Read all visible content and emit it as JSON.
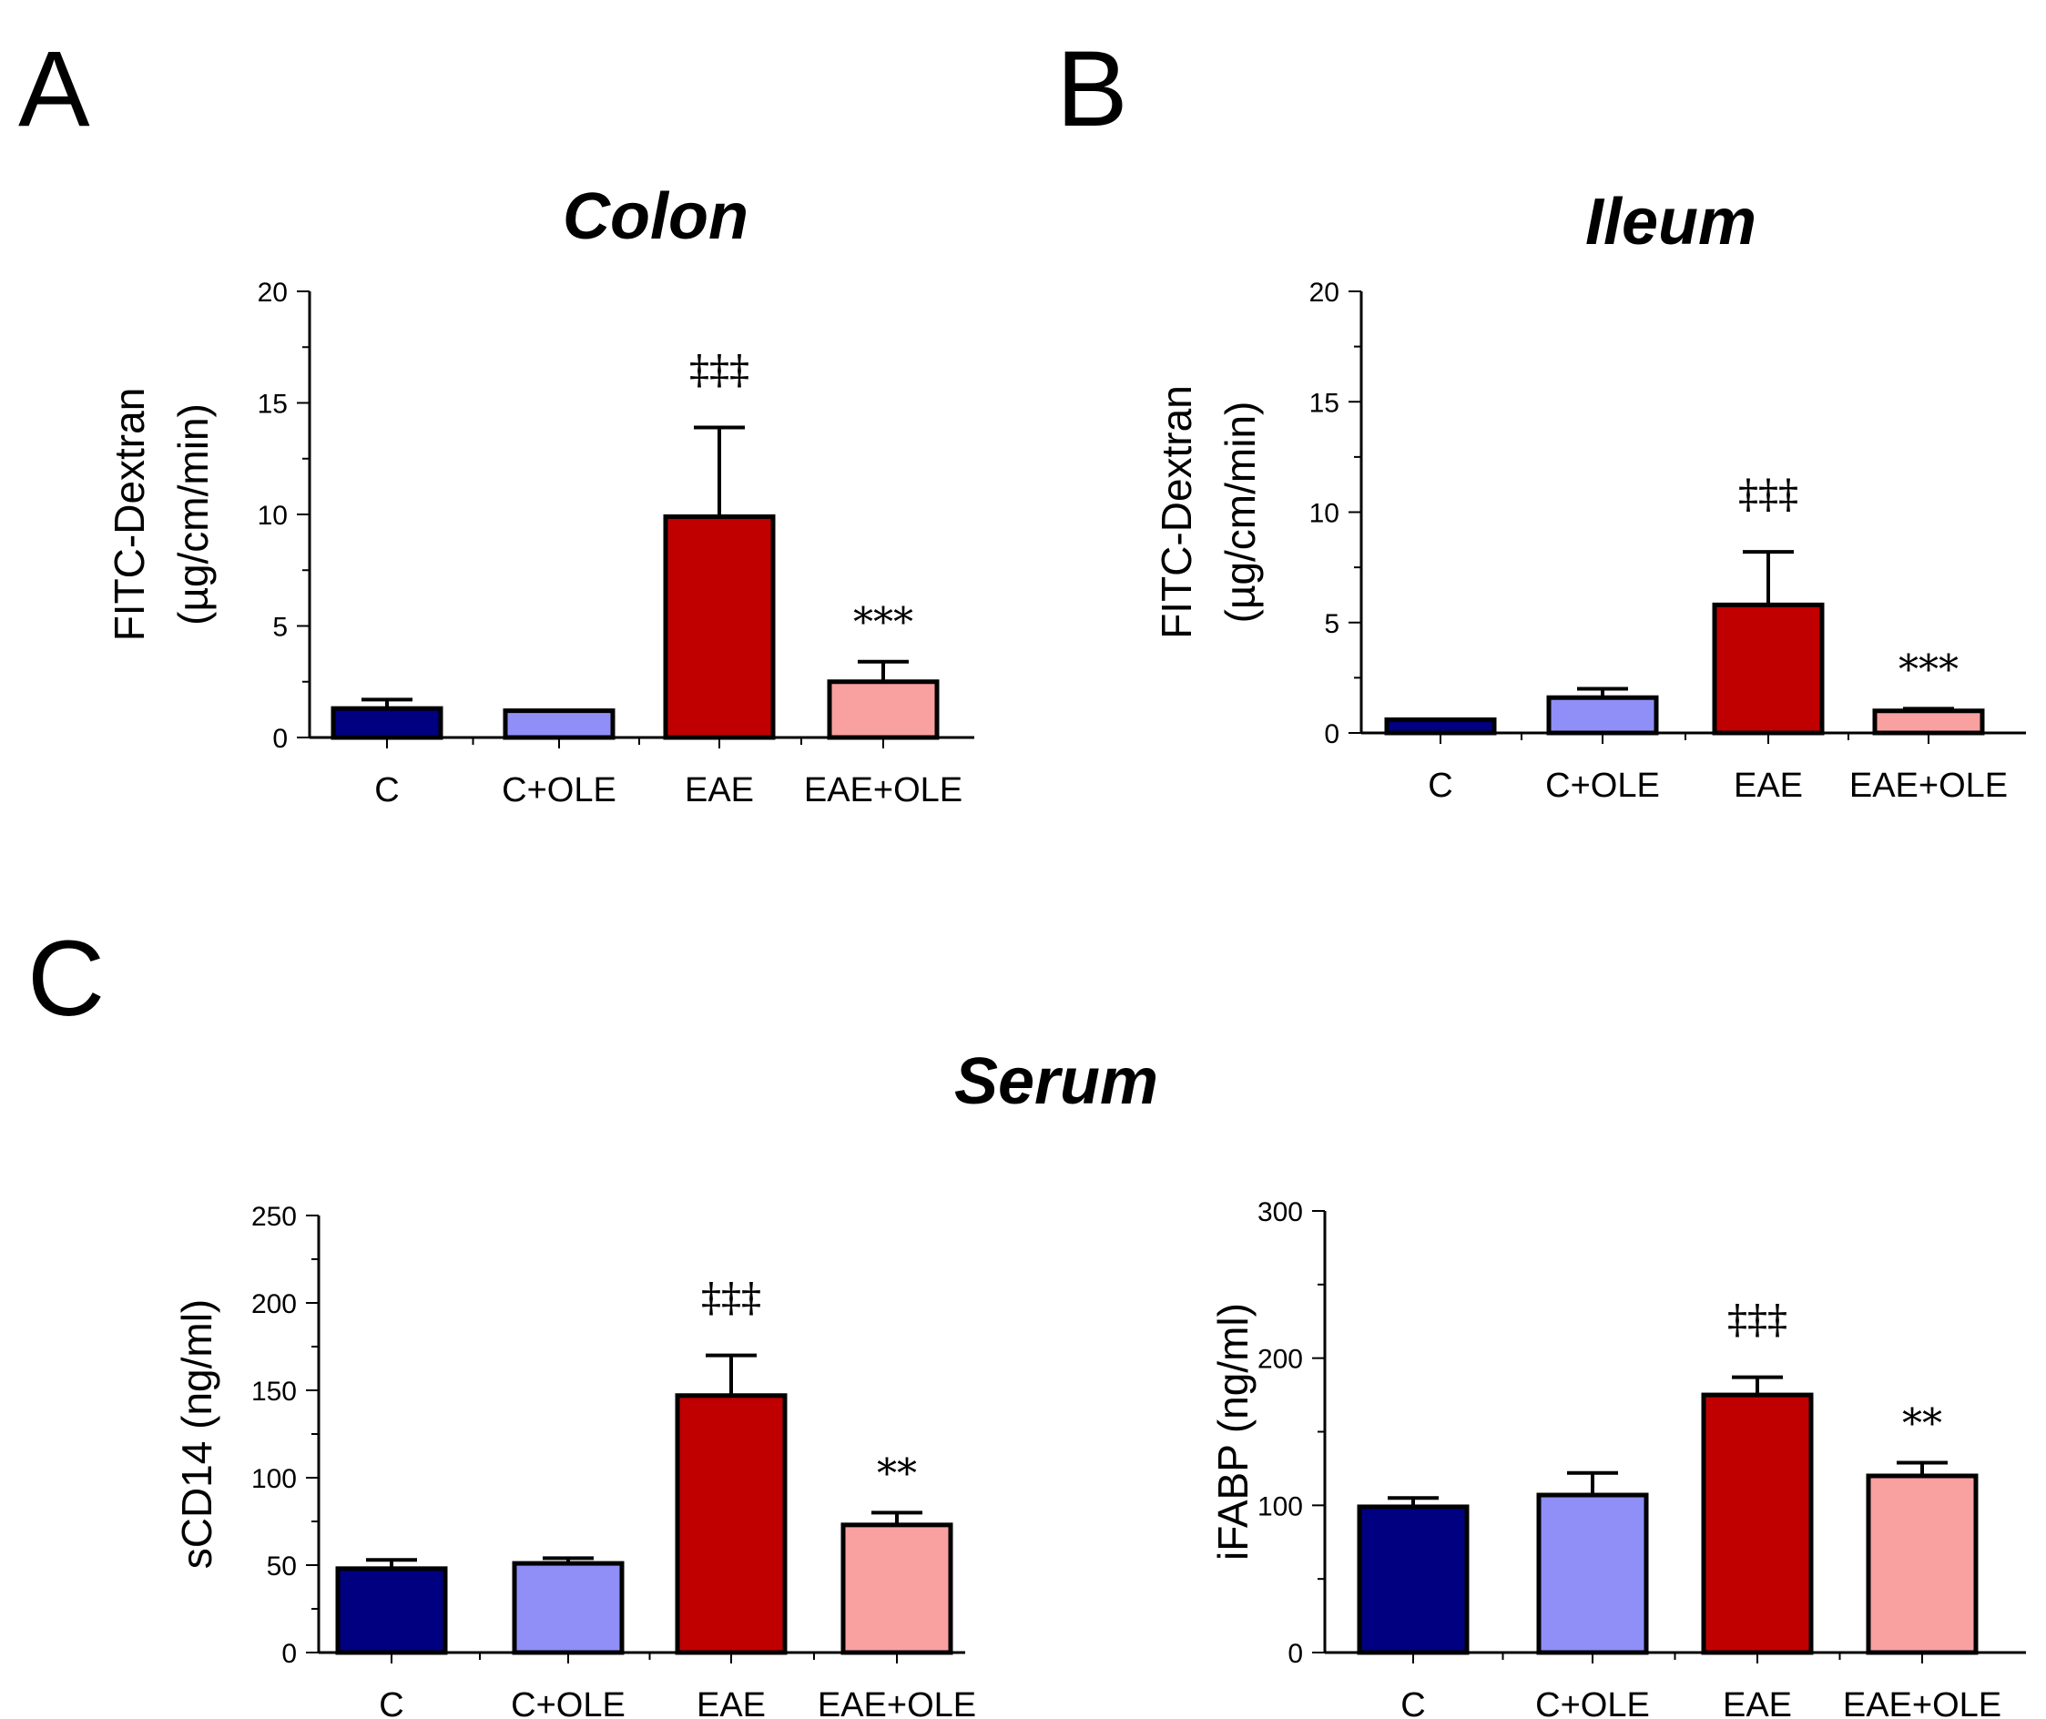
{
  "panels": [
    {
      "label": "A"
    },
    {
      "label": "B"
    },
    {
      "label": "C"
    }
  ],
  "section_titles": {
    "serum": "Serum"
  },
  "colors": {
    "C": "#000080",
    "C+OLE": "#8f8ff7",
    "EAE": "#c00000",
    "EAE+OLE": "#f9a0a0"
  },
  "chart_data": [
    {
      "type": "bar",
      "title": "Colon",
      "ylabel": [
        "FITC-Dextran",
        "(µg/cm/min)"
      ],
      "xlabel": "",
      "categories": [
        "C",
        "C+OLE",
        "EAE",
        "EAE+OLE"
      ],
      "values": [
        1.3,
        1.2,
        9.9,
        2.5
      ],
      "errors": [
        0.4,
        0.0,
        4.0,
        0.9
      ],
      "significance": [
        "",
        "",
        "‡‡‡",
        "***"
      ],
      "yticks": [
        0,
        5,
        10,
        15,
        20
      ],
      "ylim": [
        0,
        20
      ]
    },
    {
      "type": "bar",
      "title": "Ileum",
      "ylabel": [
        "FITC-Dextran",
        "(µg/cm/min)"
      ],
      "xlabel": "",
      "categories": [
        "C",
        "C+OLE",
        "EAE",
        "EAE+OLE"
      ],
      "values": [
        0.6,
        1.6,
        5.8,
        1.0
      ],
      "errors": [
        0.0,
        0.4,
        2.4,
        0.1
      ],
      "significance": [
        "",
        "",
        "‡‡‡",
        "***"
      ],
      "yticks": [
        0,
        5,
        10,
        15,
        20
      ],
      "ylim": [
        0,
        20
      ]
    },
    {
      "type": "bar",
      "title": "",
      "ylabel": [
        "sCD14 (ng/ml)"
      ],
      "xlabel": "",
      "categories": [
        "C",
        "C+OLE",
        "EAE",
        "EAE+OLE"
      ],
      "values": [
        48,
        51,
        147,
        73
      ],
      "errors": [
        5,
        3,
        23,
        7
      ],
      "significance": [
        "",
        "",
        "‡‡‡",
        "**"
      ],
      "yticks": [
        0,
        50,
        100,
        150,
        200,
        250
      ],
      "ylim": [
        0,
        250
      ]
    },
    {
      "type": "bar",
      "title": "",
      "ylabel": [
        "iFABP (ng/ml)"
      ],
      "xlabel": "",
      "categories": [
        "C",
        "C+OLE",
        "EAE",
        "EAE+OLE"
      ],
      "values": [
        99,
        107,
        175,
        120
      ],
      "errors": [
        6,
        15,
        12,
        9
      ],
      "significance": [
        "",
        "",
        "‡‡‡",
        "**"
      ],
      "yticks": [
        0,
        100,
        200,
        300
      ],
      "ylim": [
        0,
        300
      ]
    }
  ]
}
